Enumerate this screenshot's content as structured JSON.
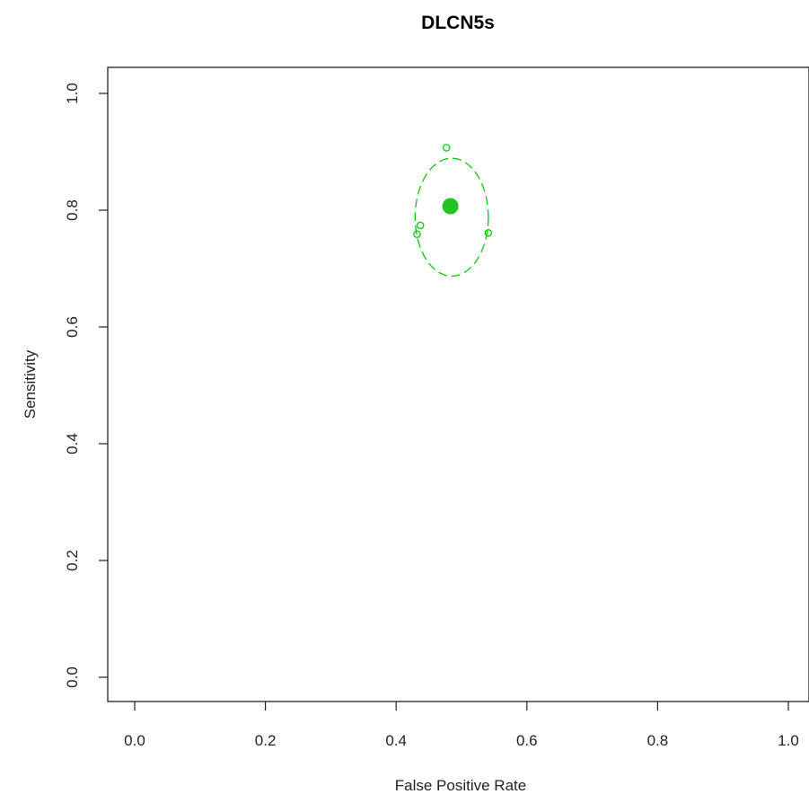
{
  "chart_data": {
    "type": "scatter",
    "title": "DLCN5s",
    "xlabel": "False Positive Rate",
    "ylabel": "Sensitivity",
    "xlim": [
      -0.04,
      1.04
    ],
    "ylim": [
      -0.04,
      1.04
    ],
    "x_ticks": [
      "0.0",
      "0.2",
      "0.4",
      "0.6",
      "0.8",
      "1.0"
    ],
    "y_ticks": [
      "0.0",
      "0.2",
      "0.4",
      "0.6",
      "0.8",
      "1.0"
    ],
    "grid": false,
    "color": "#22c422",
    "study_points": [
      {
        "x": 0.477,
        "y": 0.907
      },
      {
        "x": 0.437,
        "y": 0.774
      },
      {
        "x": 0.432,
        "y": 0.759
      },
      {
        "x": 0.541,
        "y": 0.761
      }
    ],
    "summary_point": {
      "x": 0.483,
      "y": 0.807
    },
    "confidence_region": {
      "center": {
        "x": 0.485,
        "y": 0.788
      },
      "x_radius": 0.056,
      "y_radius": 0.101
    }
  }
}
